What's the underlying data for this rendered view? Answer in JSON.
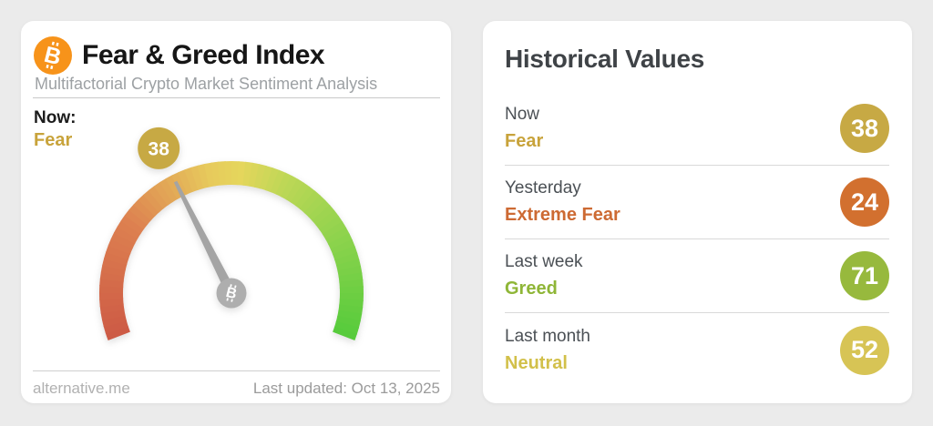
{
  "page": {
    "background_color": "#ebebeb"
  },
  "fear_greed_card": {
    "logo_icon": "bitcoin-icon",
    "title": "Fear & Greed Index",
    "subtitle": "Multifactorial Crypto Market Sentiment Analysis",
    "now_label": "Now:",
    "now_sentiment": "Fear",
    "now_sentiment_color": "#c8a33b",
    "footer_left": "alternative.me",
    "footer_right": "Last updated: Oct 13, 2025",
    "gauge": {
      "value": 38,
      "min": 0,
      "max": 100,
      "badge_color": "#c7a944",
      "needle_color": "#a4a4a4",
      "hub_color": "#aeaeae",
      "bitcoin_color": "#f7931a",
      "gradient_stops": [
        {
          "t": 0.0,
          "color": "#cd5a45"
        },
        {
          "t": 0.25,
          "color": "#dd8050"
        },
        {
          "t": 0.45,
          "color": "#e7c95c"
        },
        {
          "t": 0.52,
          "color": "#e5d65c"
        },
        {
          "t": 0.62,
          "color": "#bcd756"
        },
        {
          "t": 0.78,
          "color": "#8ed34d"
        },
        {
          "t": 1.0,
          "color": "#55cb3b"
        }
      ]
    }
  },
  "historical_card": {
    "title": "Historical Values",
    "rows": [
      {
        "period": "Now",
        "sentiment": "Fear",
        "value": "38",
        "sentiment_color": "#c8a33b",
        "badge_color": "#c7a944"
      },
      {
        "period": "Yesterday",
        "sentiment": "Extreme Fear",
        "value": "24",
        "sentiment_color": "#cd6a33",
        "badge_color": "#d2702f"
      },
      {
        "period": "Last week",
        "sentiment": "Greed",
        "value": "71",
        "sentiment_color": "#8fb637",
        "badge_color": "#97b93d"
      },
      {
        "period": "Last month",
        "sentiment": "Neutral",
        "value": "52",
        "sentiment_color": "#d2c04a",
        "badge_color": "#d7c455"
      }
    ]
  },
  "chart_data": {
    "type": "gauge",
    "title": "Fear & Greed Index",
    "subtitle": "Multifactorial Crypto Market Sentiment Analysis",
    "value": 38,
    "range": [
      0,
      100
    ],
    "current_classification": "Fear",
    "scale": "0 = extreme fear (red, left) to 100 = extreme greed (green, right), semicircular dial",
    "historical_values": [
      {
        "period": "Now",
        "classification": "Fear",
        "value": 38
      },
      {
        "period": "Yesterday",
        "classification": "Extreme Fear",
        "value": 24
      },
      {
        "period": "Last week",
        "classification": "Greed",
        "value": 71
      },
      {
        "period": "Last month",
        "classification": "Neutral",
        "value": 52
      }
    ],
    "last_updated": "Oct 13, 2025",
    "source": "alternative.me"
  }
}
